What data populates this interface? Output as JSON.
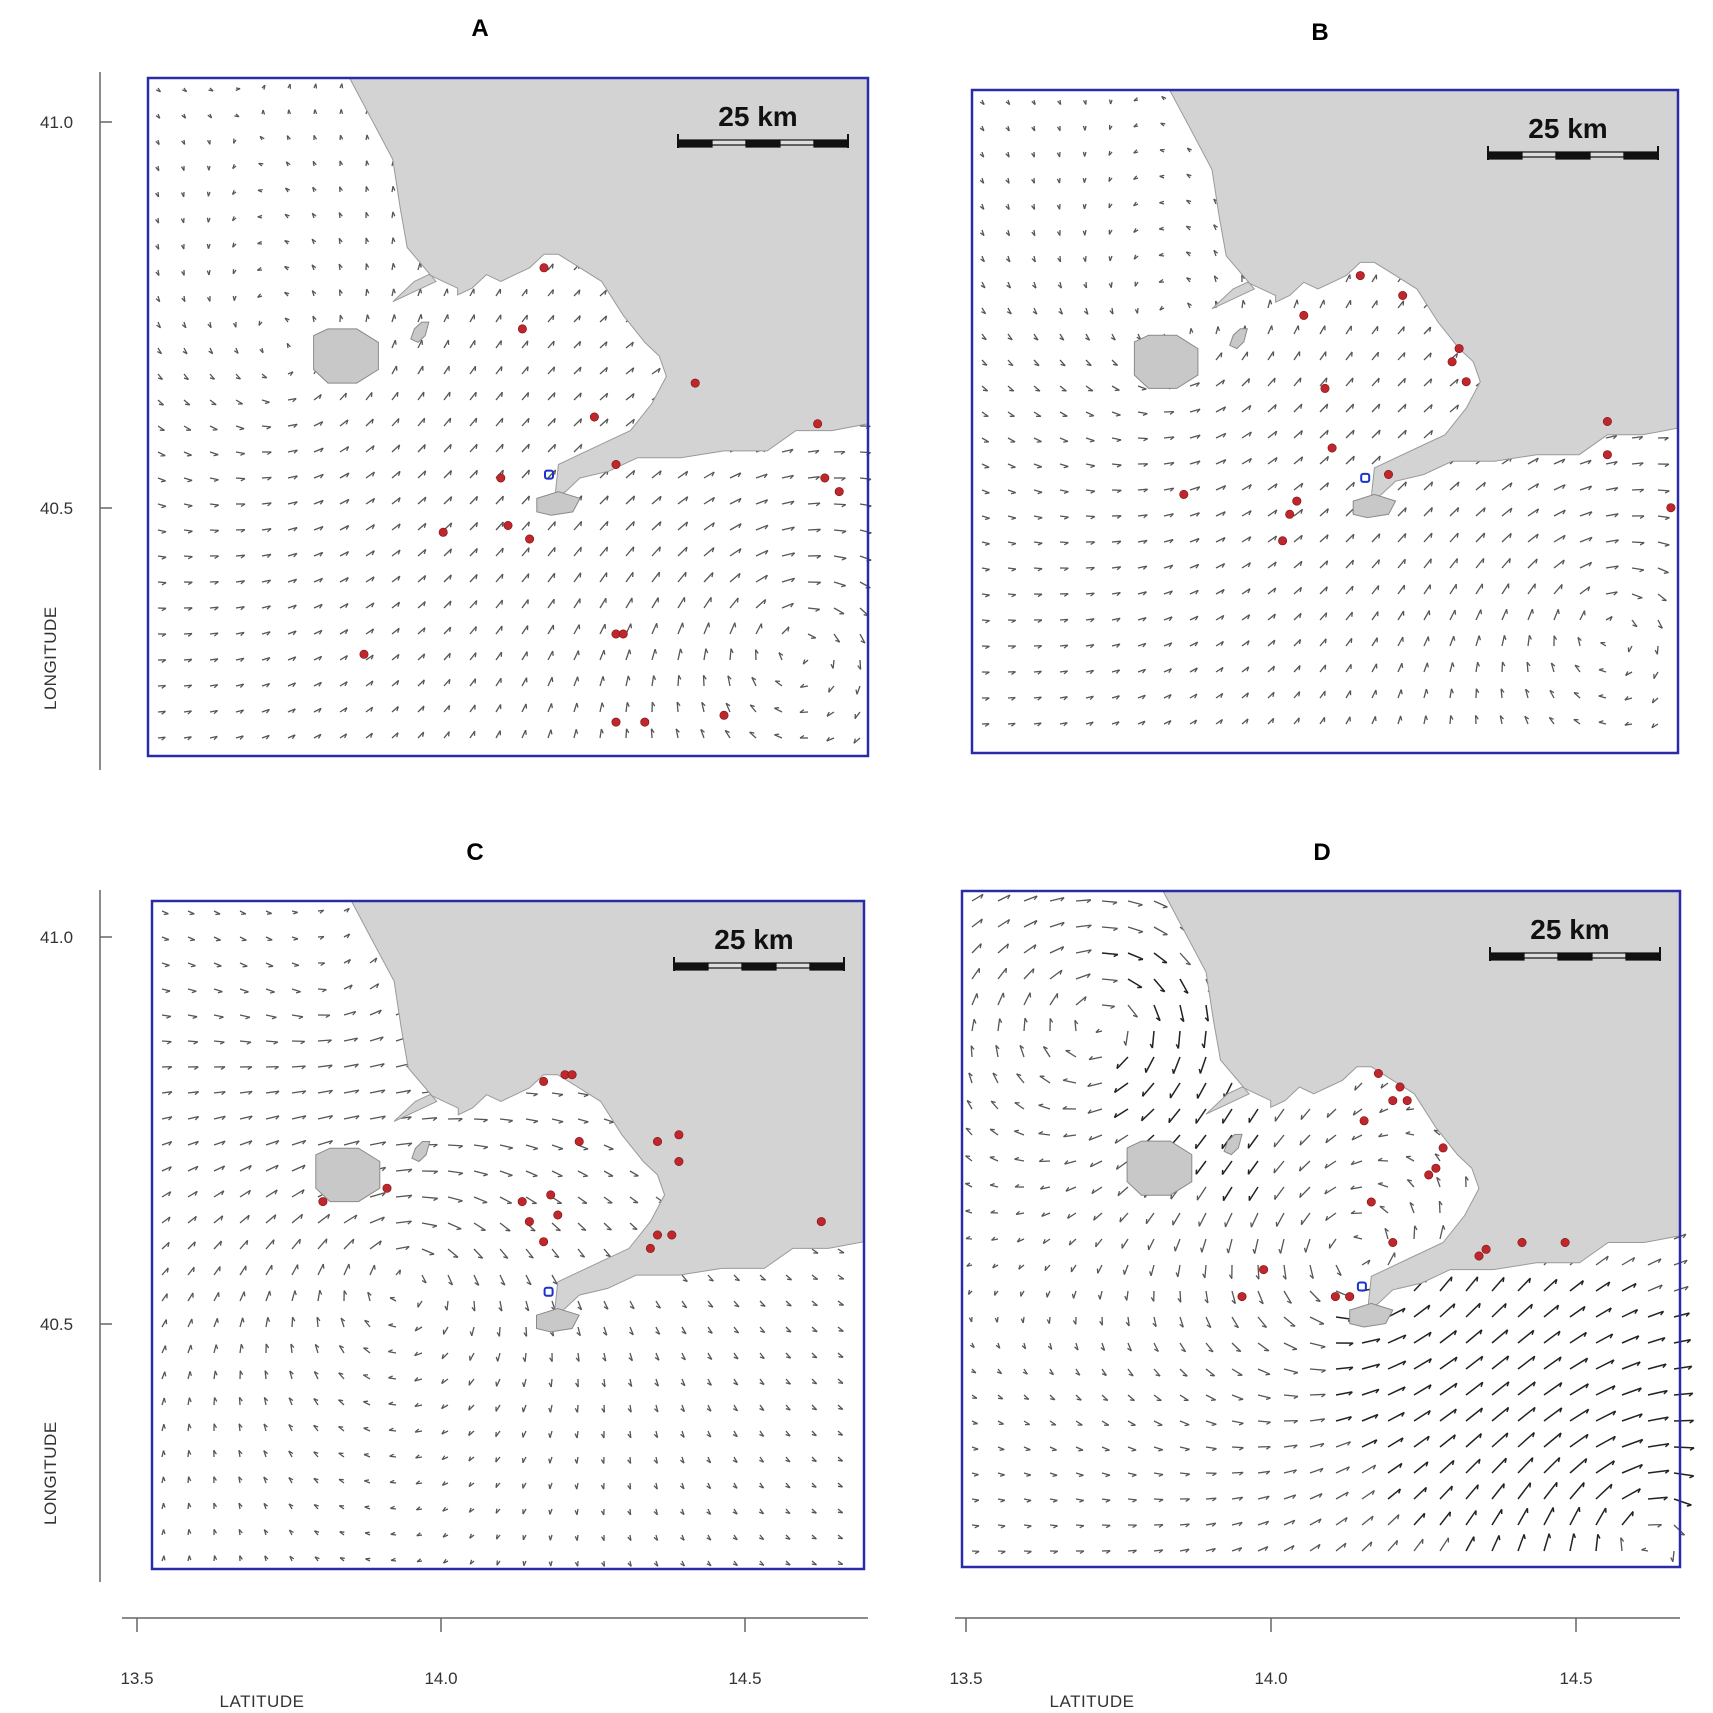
{
  "panels": [
    {
      "id": "A",
      "label": "A",
      "scale_label": "25 km"
    },
    {
      "id": "B",
      "label": "B",
      "scale_label": "25 km"
    },
    {
      "id": "C",
      "label": "C",
      "scale_label": "25 km"
    },
    {
      "id": "D",
      "label": "D",
      "scale_label": "25 km"
    }
  ],
  "y_axis": {
    "title": "LONGITUDE",
    "ticks": [
      "41.0",
      "40.5"
    ]
  },
  "x_axis": {
    "title": "LATITUDE",
    "ticks": [
      "13.5",
      "14.0",
      "14.5"
    ]
  },
  "colors": {
    "frame": "#2b2ba8",
    "land": "#d3d3d3",
    "sites": "#c0272d",
    "marker": "#1a33cc",
    "arrows": "#444444"
  }
}
